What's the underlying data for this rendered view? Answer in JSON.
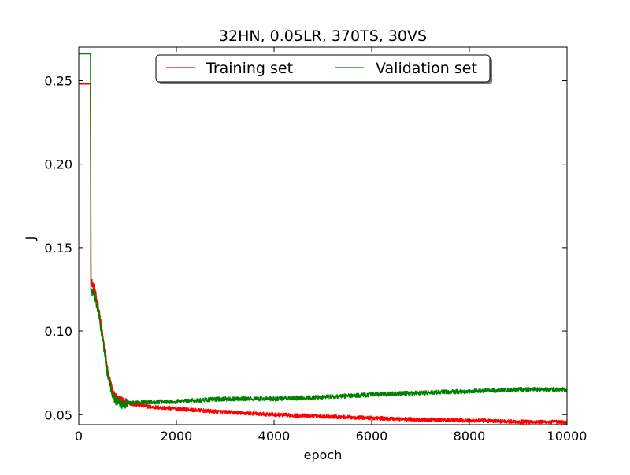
{
  "chart_data": {
    "type": "line",
    "title": "32HN, 0.05LR, 370TS, 30VS",
    "xlabel": "epoch",
    "ylabel": "J",
    "xlim": [
      0,
      10000
    ],
    "ylim": [
      0.044,
      0.27
    ],
    "xticks": [
      0,
      2000,
      4000,
      6000,
      8000,
      10000
    ],
    "xtick_labels": [
      "0",
      "2000",
      "4000",
      "6000",
      "8000",
      "10000"
    ],
    "yticks": [
      0.05,
      0.1,
      0.15,
      0.2,
      0.25
    ],
    "ytick_labels": [
      "0.05",
      "0.10",
      "0.15",
      "0.20",
      "0.25"
    ],
    "grid": false,
    "legend": {
      "placement": "upper center",
      "columns": 2
    },
    "series": [
      {
        "name": "Training set",
        "color": "#ff0000",
        "noise": 0.0011,
        "x": [
          0,
          200,
          240,
          250,
          300,
          400,
          500,
          600,
          700,
          800,
          900,
          1000,
          1500,
          2000,
          3000,
          4000,
          5000,
          6000,
          7000,
          8000,
          9000,
          10000
        ],
        "y": [
          0.248,
          0.248,
          0.248,
          0.13,
          0.127,
          0.115,
          0.095,
          0.075,
          0.063,
          0.059,
          0.058,
          0.057,
          0.0545,
          0.0535,
          0.0515,
          0.05,
          0.049,
          0.048,
          0.047,
          0.0465,
          0.0458,
          0.0455
        ]
      },
      {
        "name": "Validation set",
        "color": "#008000",
        "noise": 0.0013,
        "x": [
          0,
          200,
          240,
          250,
          300,
          400,
          500,
          600,
          700,
          800,
          900,
          1000,
          1500,
          2000,
          3000,
          4000,
          5000,
          6000,
          7000,
          8000,
          9000,
          10000
        ],
        "y": [
          0.266,
          0.266,
          0.266,
          0.125,
          0.122,
          0.112,
          0.093,
          0.072,
          0.061,
          0.057,
          0.0565,
          0.057,
          0.0575,
          0.058,
          0.0595,
          0.0595,
          0.0605,
          0.062,
          0.063,
          0.064,
          0.065,
          0.065
        ]
      }
    ]
  }
}
